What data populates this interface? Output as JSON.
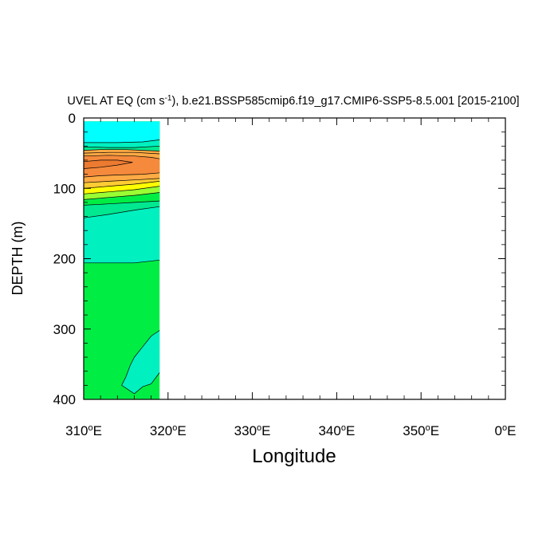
{
  "chart_data": {
    "type": "heatmap",
    "subtype": "filled-contour",
    "title_prefix": "UVEL AT EQ (cm s",
    "title_exponent": "-1",
    "title_suffix": "), b.e21.BSSP585cmip6.f19_g17.CMIP6-SSP5-8.5.001 [2015-2100]",
    "xlabel": "Longitude",
    "ylabel": "DEPTH (m)",
    "xlim": [
      310,
      360
    ],
    "ylim": [
      0,
      400
    ],
    "y_inverted": true,
    "xticks": [
      {
        "value": 310,
        "num": "310",
        "unit": "E"
      },
      {
        "value": 320,
        "num": "320",
        "unit": "E"
      },
      {
        "value": 330,
        "num": "330",
        "unit": "E"
      },
      {
        "value": 340,
        "num": "340",
        "unit": "E"
      },
      {
        "value": 350,
        "num": "350",
        "unit": "E"
      },
      {
        "value": 360,
        "num": "0",
        "unit": "E"
      }
    ],
    "yticks": [
      {
        "value": 0,
        "label": "0"
      },
      {
        "value": 100,
        "label": "100"
      },
      {
        "value": 200,
        "label": "200"
      },
      {
        "value": 300,
        "label": "300"
      },
      {
        "value": 400,
        "label": "400"
      }
    ],
    "data_extent": {
      "lon": [
        310,
        319
      ],
      "depth": [
        5,
        400
      ]
    },
    "colors": {
      "cyan": "#00ffff",
      "aquamarine": "#00f0c0",
      "spring_green": "#00e890",
      "green": "#00ee44",
      "lime": "#99ff33",
      "yellow": "#ffff00",
      "gold": "#ffcc33",
      "light_orange": "#ffaa44",
      "orange": "#f58a3c",
      "dark_orange": "#ec7a30",
      "line": "#000000"
    },
    "layers": [
      {
        "color": "green",
        "polygon": [
          [
            310,
            5
          ],
          [
            319,
            5
          ],
          [
            319,
            400
          ],
          [
            310,
            400
          ]
        ]
      },
      {
        "color": "aquamarine",
        "polygon": [
          [
            310,
            5
          ],
          [
            319,
            5
          ],
          [
            319,
            202
          ],
          [
            316,
            206
          ],
          [
            310,
            206
          ]
        ]
      },
      {
        "color": "aquamarine",
        "polygon": [
          [
            319,
            302
          ],
          [
            318,
            310
          ],
          [
            317,
            325
          ],
          [
            316,
            340
          ],
          [
            315.5,
            352
          ],
          [
            315,
            368
          ],
          [
            314.5,
            380
          ],
          [
            316,
            392
          ],
          [
            317,
            382
          ],
          [
            318,
            378
          ],
          [
            319,
            362
          ]
        ]
      },
      {
        "color": "spring_green",
        "polygon": [
          [
            310,
            5
          ],
          [
            319,
            5
          ],
          [
            319,
            126
          ],
          [
            316,
            131
          ],
          [
            313,
            137
          ],
          [
            310,
            142
          ]
        ]
      },
      {
        "color": "green",
        "polygon": [
          [
            310,
            5
          ],
          [
            319,
            5
          ],
          [
            319,
            118
          ],
          [
            316,
            120
          ],
          [
            313,
            122
          ],
          [
            310,
            124
          ]
        ]
      },
      {
        "color": "lime",
        "polygon": [
          [
            310,
            5
          ],
          [
            319,
            5
          ],
          [
            319,
            106
          ],
          [
            316,
            110
          ],
          [
            313,
            113
          ],
          [
            310,
            116
          ]
        ]
      },
      {
        "color": "yellow",
        "polygon": [
          [
            310,
            5
          ],
          [
            319,
            5
          ],
          [
            319,
            97
          ],
          [
            316,
            102
          ],
          [
            313,
            105
          ],
          [
            310,
            108
          ]
        ]
      },
      {
        "color": "gold",
        "polygon": [
          [
            310,
            5
          ],
          [
            319,
            5
          ],
          [
            319,
            90
          ],
          [
            316,
            94
          ],
          [
            313,
            97
          ],
          [
            310,
            100
          ]
        ]
      },
      {
        "color": "light_orange",
        "polygon": [
          [
            310,
            45
          ],
          [
            312,
            44
          ],
          [
            314,
            44
          ],
          [
            316,
            44
          ],
          [
            318,
            45
          ],
          [
            319,
            46
          ],
          [
            319,
            86
          ],
          [
            316,
            88
          ],
          [
            313,
            90
          ],
          [
            310,
            92
          ]
        ]
      },
      {
        "color": "orange",
        "polygon": [
          [
            310,
            54
          ],
          [
            313,
            53
          ],
          [
            316,
            54
          ],
          [
            318,
            56
          ],
          [
            319,
            58
          ],
          [
            319,
            78
          ],
          [
            317,
            80
          ],
          [
            314,
            81
          ],
          [
            312,
            82
          ],
          [
            310,
            84
          ]
        ]
      },
      {
        "color": "dark_orange",
        "polygon": [
          [
            310,
            62
          ],
          [
            312,
            60
          ],
          [
            314,
            60
          ],
          [
            315.8,
            63
          ],
          [
            314,
            67
          ],
          [
            312,
            70
          ],
          [
            310,
            72
          ]
        ]
      },
      {
        "color": "spring_green",
        "polygon": [
          [
            310,
            5
          ],
          [
            319,
            5
          ],
          [
            319,
            47
          ],
          [
            317,
            46
          ],
          [
            315,
            45
          ],
          [
            312,
            45
          ],
          [
            310,
            46
          ]
        ]
      },
      {
        "color": "aquamarine",
        "polygon": [
          [
            310,
            5
          ],
          [
            319,
            5
          ],
          [
            319,
            40
          ],
          [
            316,
            42
          ],
          [
            313,
            42
          ],
          [
            310,
            41
          ]
        ]
      },
      {
        "color": "cyan",
        "polygon": [
          [
            310,
            5
          ],
          [
            319,
            5
          ],
          [
            319,
            31
          ],
          [
            317,
            34
          ],
          [
            314,
            35
          ],
          [
            312,
            35
          ],
          [
            310,
            35
          ]
        ]
      }
    ],
    "contour_lines": [
      [
        [
          310,
          35
        ],
        [
          312,
          35
        ],
        [
          314,
          35
        ],
        [
          317,
          34
        ],
        [
          319,
          31
        ]
      ],
      [
        [
          310,
          41
        ],
        [
          313,
          42
        ],
        [
          316,
          42
        ],
        [
          319,
          40
        ]
      ],
      [
        [
          310,
          46
        ],
        [
          312,
          45
        ],
        [
          315,
          45
        ],
        [
          317,
          46
        ],
        [
          319,
          47
        ]
      ],
      [
        [
          310,
          50
        ],
        [
          313,
          49
        ],
        [
          316,
          49
        ],
        [
          319,
          51
        ]
      ],
      [
        [
          310,
          62
        ],
        [
          312,
          60
        ],
        [
          314,
          60
        ],
        [
          315.8,
          63
        ],
        [
          314,
          67
        ],
        [
          312,
          70
        ],
        [
          310,
          72
        ]
      ],
      [
        [
          310,
          54
        ],
        [
          313,
          53
        ],
        [
          316,
          54
        ],
        [
          318,
          56
        ],
        [
          319,
          58
        ]
      ],
      [
        [
          310,
          84
        ],
        [
          312,
          82
        ],
        [
          314,
          81
        ],
        [
          317,
          80
        ],
        [
          319,
          78
        ]
      ],
      [
        [
          310,
          92
        ],
        [
          313,
          90
        ],
        [
          316,
          88
        ],
        [
          319,
          86
        ]
      ],
      [
        [
          310,
          100
        ],
        [
          313,
          97
        ],
        [
          316,
          94
        ],
        [
          319,
          90
        ]
      ],
      [
        [
          310,
          108
        ],
        [
          313,
          105
        ],
        [
          316,
          102
        ],
        [
          319,
          97
        ]
      ],
      [
        [
          310,
          116
        ],
        [
          313,
          113
        ],
        [
          316,
          110
        ],
        [
          319,
          106
        ]
      ],
      [
        [
          310,
          124
        ],
        [
          313,
          122
        ],
        [
          316,
          120
        ],
        [
          319,
          118
        ]
      ],
      [
        [
          310,
          142
        ],
        [
          313,
          137
        ],
        [
          316,
          131
        ],
        [
          319,
          126
        ]
      ],
      [
        [
          310,
          206
        ],
        [
          316,
          206
        ],
        [
          319,
          202
        ]
      ],
      [
        [
          319,
          302
        ],
        [
          318,
          310
        ],
        [
          317,
          325
        ],
        [
          316,
          340
        ],
        [
          315.5,
          352
        ],
        [
          315,
          368
        ],
        [
          314.5,
          380
        ],
        [
          316,
          392
        ],
        [
          317,
          382
        ],
        [
          318,
          378
        ],
        [
          319,
          362
        ]
      ]
    ]
  }
}
